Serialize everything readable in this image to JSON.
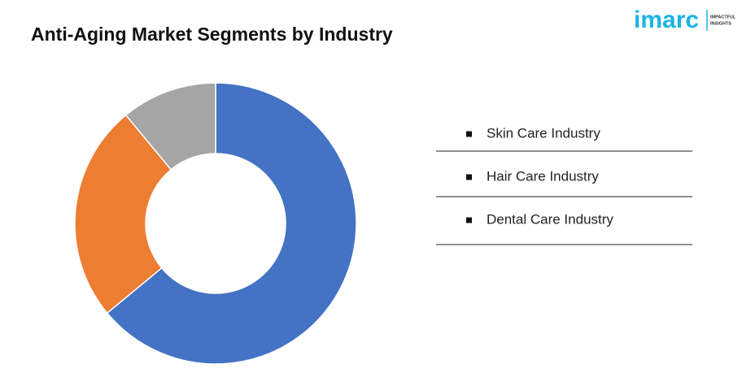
{
  "logo": {
    "brand": "imarc",
    "tagline_top": "IMPACTFUL",
    "tagline_bottom": "INSIGHTS"
  },
  "chart_data": {
    "type": "donut",
    "title": "Anti-Aging Market Segments by Industry",
    "categories": [
      "Skin Care Industry",
      "Hair Care Industry",
      "Dental Care Industry"
    ],
    "values": [
      64,
      25,
      11
    ],
    "colors": [
      "#4472c4",
      "#ed7d31",
      "#a5a5a5"
    ]
  }
}
